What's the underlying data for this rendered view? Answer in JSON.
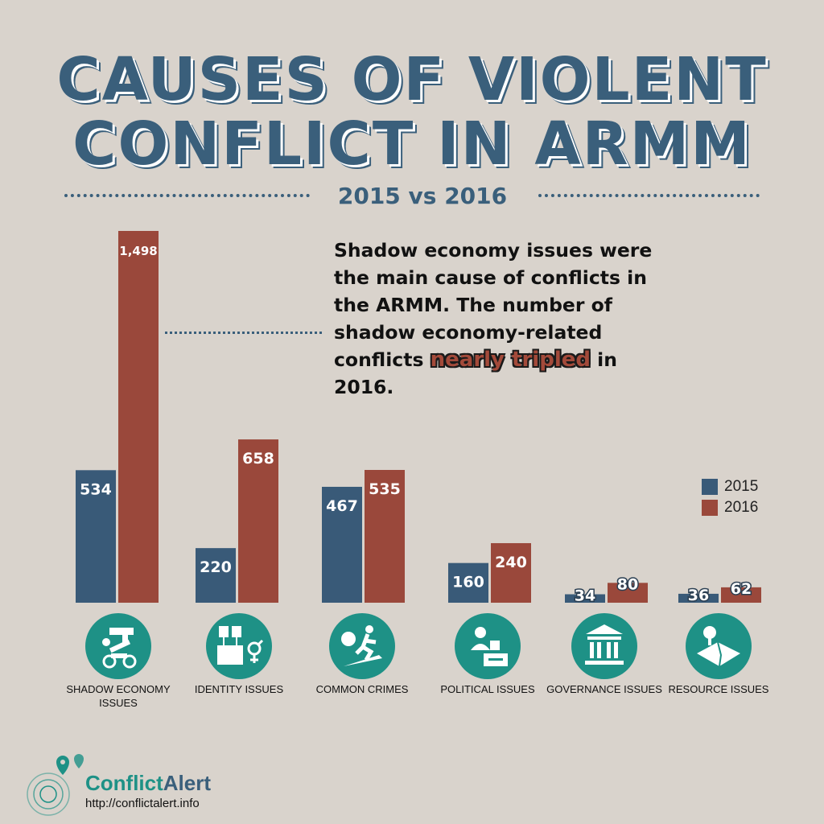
{
  "header": {
    "title_line1": "CAUSES OF VIOLENT",
    "title_line2": "CONFLICT IN ARMM",
    "subtitle": "2015 vs 2016"
  },
  "callout": {
    "text_before": "Shadow economy issues were the main cause of conflicts in the ARMM. The number of shadow economy-related conflicts",
    "highlight": "nearly tripled",
    "text_after": "in 2016."
  },
  "colors": {
    "s2015": "#395a78",
    "s2016": "#9a483b",
    "icon_bg": "#1e9186",
    "accent": "#3a5f7b"
  },
  "chart_data": {
    "type": "bar",
    "categories": [
      "SHADOW ECONOMY ISSUES",
      "IDENTITY ISSUES",
      "COMMON CRIMES",
      "POLITICAL ISSUES",
      "GOVERNANCE ISSUES",
      "RESOURCE ISSUES"
    ],
    "series": [
      {
        "name": "2015",
        "values": [
          534,
          220,
          467,
          160,
          34,
          36
        ],
        "labels": [
          "534",
          "220",
          "467",
          "160",
          "34",
          "36"
        ]
      },
      {
        "name": "2016",
        "values": [
          1498,
          658,
          535,
          240,
          80,
          62
        ],
        "labels": [
          "1,498",
          "658",
          "535",
          "240",
          "80",
          "62"
        ]
      }
    ],
    "title": "CAUSES OF VIOLENT CONFLICT IN ARMM",
    "subtitle": "2015 vs 2016",
    "legend": [
      "2015",
      "2016"
    ],
    "legend_position": "right"
  },
  "legend": {
    "label_2015": "2015",
    "label_2016": "2016"
  },
  "icons": [
    "gun-drug-motorcycle-icon",
    "protest-gender-icon",
    "thief-knife-icon",
    "soldier-ballot-icon",
    "government-building-icon",
    "land-parcel-icon"
  ],
  "categories_display": {
    "c0": "SHADOW ECONOMY ISSUES",
    "c1": "IDENTITY ISSUES",
    "c2": "COMMON CRIMES",
    "c3": "POLITICAL ISSUES",
    "c4": "GOVERNANCE ISSUES",
    "c5": "RESOURCE ISSUES"
  },
  "footer": {
    "brand_part1": "Conflict",
    "brand_part2": "Alert",
    "url": "http://conflictalert.info"
  }
}
